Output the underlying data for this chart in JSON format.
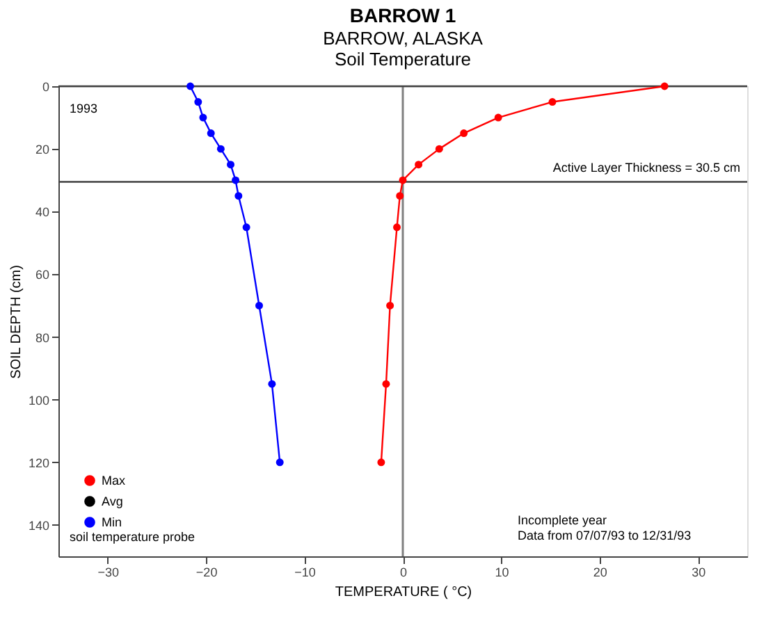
{
  "chart_data": {
    "type": "line",
    "title": "BARROW 1",
    "subtitle": "BARROW, ALASKA\nSoil Temperature",
    "xlabel": "TEMPERATURE ( °C)",
    "ylabel": "SOIL DEPTH (cm)",
    "annotations": [
      "1993",
      "soil temperature probe",
      "Incomplete year\nData from 07/07/93 to 12/31/93"
    ],
    "series": [
      {
        "name": "Max",
        "color": "#ff0000",
        "x": [
          26.6,
          15.2,
          9.7,
          6.2,
          3.7,
          1.6,
          0.0,
          -0.3,
          -0.6,
          -1.3,
          -1.7,
          -2.2
        ],
        "values": [
          0,
          5,
          10,
          15,
          20,
          25,
          30,
          35,
          45,
          70,
          95,
          120
        ]
      },
      {
        "name": "Avg",
        "color": "#000000"
      },
      {
        "name": "Min",
        "color": "#0000ff",
        "x": [
          -21.6,
          -20.8,
          -20.3,
          -19.5,
          -18.5,
          -17.5,
          -17.0,
          -16.7,
          -15.9,
          -14.6,
          -13.3,
          -12.5
        ],
        "values": [
          0,
          5,
          10,
          15,
          20,
          25,
          30,
          35,
          45,
          70,
          95,
          120
        ]
      }
    ],
    "xlim": [
      -35,
      35
    ],
    "xticks": [
      -30,
      -20,
      -10,
      0,
      10,
      20,
      30
    ],
    "ylim": [
      150,
      0
    ],
    "yticks": [
      0,
      20,
      40,
      60,
      80,
      100,
      120,
      140
    ],
    "ref_lines": [
      {
        "axis": "x",
        "value": 0,
        "color": "#808080"
      },
      {
        "axis": "y",
        "value": 0,
        "color": "#404040"
      },
      {
        "axis": "y",
        "value": 30.5,
        "label": "Active Layer Thickness = 30.5 cm",
        "color": "#404040"
      }
    ],
    "marker": "circle",
    "line_style": "solid",
    "grid": false,
    "legend": "bottom left"
  }
}
